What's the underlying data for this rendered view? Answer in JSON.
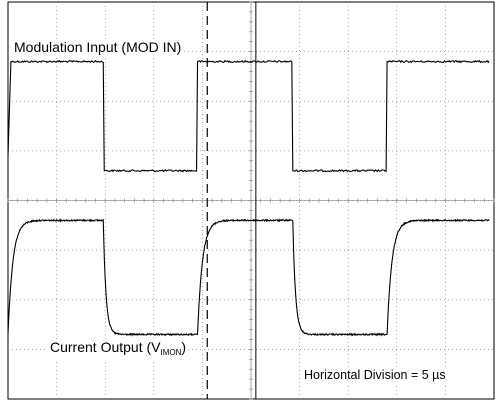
{
  "chart_data": {
    "type": "line",
    "title": "",
    "x_unit": "µs",
    "x_div_us": 5,
    "x_divisions": 10,
    "y_divisions": 8,
    "cursor_dashed_us": 20.5,
    "cursor_solid_us": 25.5,
    "series": [
      {
        "name": "Modulation Input (MOD IN)",
        "label_plain": "Modulation Input (MOD IN)",
        "color": "#000000",
        "high_div": 6.8,
        "low_div": 4.6,
        "points_us": [
          [
            0,
            4.9
          ],
          [
            0.3,
            6.8
          ],
          [
            9.8,
            6.8
          ],
          [
            9.9,
            4.6
          ],
          [
            19.4,
            4.6
          ],
          [
            19.5,
            6.8
          ],
          [
            29.2,
            6.8
          ],
          [
            29.3,
            4.6
          ],
          [
            38.9,
            4.6
          ],
          [
            39.0,
            6.8
          ],
          [
            49.5,
            6.8
          ]
        ]
      },
      {
        "name": "Current Output",
        "label_main": "Current Output (V",
        "label_sub": "IMON",
        "label_tail": ")",
        "color": "#000000",
        "high_div": 3.6,
        "low_div": 1.3,
        "rise_us": [
          0,
          19.5,
          39.0
        ],
        "fall_us": [
          9.8,
          29.3
        ],
        "rise_tau_us": 0.5,
        "fall_tau_us": 0.28,
        "start_div": 1.3,
        "end_us": 49.5
      }
    ],
    "annotation": "Horizontal Division = 5 µs"
  }
}
